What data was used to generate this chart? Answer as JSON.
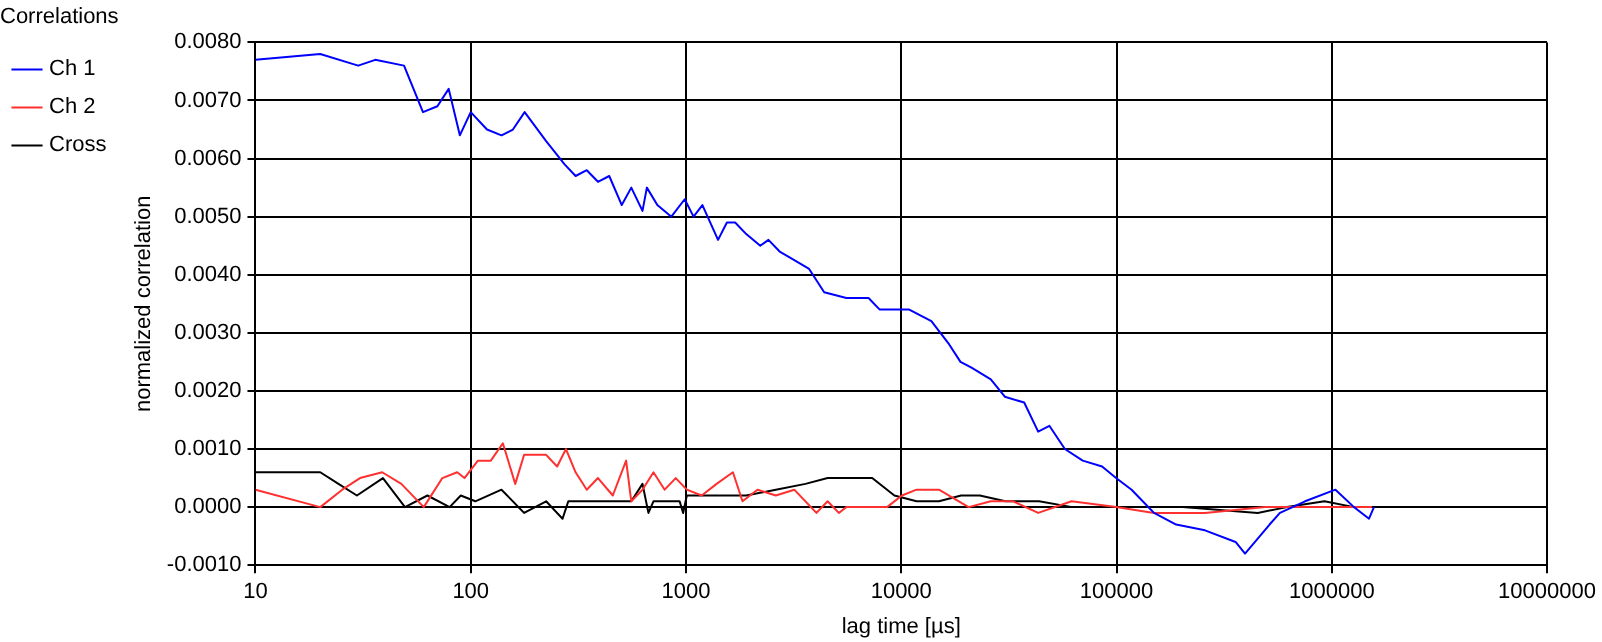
{
  "chart_data": {
    "type": "line",
    "title": "Correlations",
    "xlabel": "lag time [µs]",
    "ylabel": "normalized correlation",
    "log": "x",
    "xlim": [
      10,
      10000000
    ],
    "xticks": [
      10,
      100,
      1000,
      10000,
      100000,
      1000000,
      10000000
    ],
    "ylim": [
      -0.001,
      0.008
    ],
    "yticks": [
      {
        "value": -0.001,
        "label": "-0.0010"
      },
      {
        "value": 0,
        "label": "0.0000"
      },
      {
        "value": 0.001,
        "label": "0.0010"
      },
      {
        "value": 0.002,
        "label": "0.0020"
      },
      {
        "value": 0.003,
        "label": "0.0030"
      },
      {
        "value": 0.004,
        "label": "0.0040"
      },
      {
        "value": 0.005,
        "label": "0.0050"
      },
      {
        "value": 0.006,
        "label": "0.0060"
      },
      {
        "value": 0.007,
        "label": "0.0070"
      },
      {
        "value": 0.008,
        "label": "0.0080"
      }
    ],
    "grid": true,
    "legend": "left",
    "marker": "none",
    "line_style": "solid",
    "series": [
      {
        "name": "Ch 1",
        "color": "#0000ff",
        "x": [
          10,
          20,
          30,
          36,
          49,
          60,
          70,
          79,
          89,
          100,
          119,
          139,
          157,
          178,
          224,
          273,
          307,
          346,
          390,
          440,
          503,
          557,
          628,
          658,
          736,
          855,
          986,
          1084,
          1192,
          1409,
          1549,
          1692,
          1905,
          2213,
          2416,
          2723,
          3733,
          4385,
          5559,
          7047,
          7943,
          10890,
          13800,
          16700,
          18840,
          21200,
          26060,
          30270,
          37240,
          43250,
          48750,
          57540,
          69660,
          85700,
          99540,
          117500,
          149300,
          189200,
          257600,
          357300,
          395400,
          514000,
          574100,
          751600,
          1040000,
          1268000,
          1489000,
          1570000
        ],
        "values": [
          0.0077,
          0.0078,
          0.0076,
          0.0077,
          0.0076,
          0.0068,
          0.0069,
          0.0072,
          0.0064,
          0.0068,
          0.0065,
          0.0064,
          0.0065,
          0.0068,
          0.0063,
          0.0059,
          0.0057,
          0.0058,
          0.0056,
          0.0057,
          0.0052,
          0.0055,
          0.0051,
          0.0055,
          0.0052,
          0.005,
          0.0053,
          0.005,
          0.0052,
          0.0046,
          0.0049,
          0.0049,
          0.0047,
          0.0045,
          0.0046,
          0.0044,
          0.0041,
          0.0037,
          0.0036,
          0.0036,
          0.0034,
          0.0034,
          0.0032,
          0.0028,
          0.0025,
          0.0024,
          0.0022,
          0.0019,
          0.0018,
          0.0013,
          0.0014,
          0.001,
          0.0008,
          0.0007,
          0.0005,
          0.0003,
          -0.0001,
          -0.0003,
          -0.0004,
          -0.0006,
          -0.0008,
          -0.0003,
          -0.0001,
          0.0001,
          0.0003,
          0,
          -0.0002,
          0
        ]
      },
      {
        "name": "Ch 2",
        "color": "#ff3030",
        "x": [
          10,
          20,
          25.3,
          30.6,
          38.8,
          47.6,
          60.5,
          73.8,
          86.5,
          93.5,
          108,
          124,
          141,
          161,
          177,
          199,
          224,
          252,
          277,
          307,
          346,
          390,
          457,
          527,
          557,
          628,
          706,
          796,
          896,
          1009,
          1183,
          1387,
          1652,
          1830,
          2148,
          2614,
          3184,
          4036,
          4550,
          5128,
          5559,
          6252,
          8590,
          10070,
          11780,
          14960,
          20560,
          26060,
          33110,
          43250,
          61800,
          99540,
          149300,
          257600,
          489800,
          729400,
          1074000,
          1535000
        ],
        "values": [
          0.0003,
          0,
          0.0003,
          0.0005,
          0.0006,
          0.0004,
          0,
          0.0005,
          0.0006,
          0.0005,
          0.0008,
          0.0008,
          0.0011,
          0.0004,
          0.0009,
          0.0009,
          0.0009,
          0.0007,
          0.001,
          0.0006,
          0.0003,
          0.0005,
          0.0002,
          0.0008,
          0.0001,
          0.0003,
          0.0006,
          0.0003,
          0.0005,
          0.0003,
          0.0002,
          0.0004,
          0.0006,
          0.0001,
          0.0003,
          0.0002,
          0.0003,
          -0.0001,
          0.0001,
          -0.0001,
          0,
          0,
          0,
          0.0002,
          0.0003,
          0.0003,
          0,
          0.0001,
          0.0001,
          -0.0001,
          0.0001,
          0,
          -0.0001,
          -0.0001,
          0,
          0,
          0,
          0
        ]
      },
      {
        "name": "Cross",
        "color": "#000000",
        "x": [
          10,
          20,
          24.3,
          29.6,
          39.1,
          49.5,
          62.9,
          79.8,
          89.9,
          105,
          139,
          177,
          224,
          267,
          284,
          422,
          557,
          628,
          669,
          706,
          934,
          970,
          1009,
          1387,
          1905,
          2614,
          3589,
          4550,
          5768,
          7328,
          9290,
          11780,
          14960,
          18970,
          23170,
          30480,
          43650,
          62230,
          99540,
          203200,
          452900,
          619400,
          924700,
          1268000
        ],
        "values": [
          0.0006,
          0.0006,
          0.0004,
          0.0002,
          0.0005,
          0,
          0.0002,
          0,
          0.0002,
          0.0001,
          0.0003,
          -0.0001,
          0.0001,
          -0.0002,
          0.0001,
          0.0001,
          0.0001,
          0.0004,
          -0.0001,
          0.0001,
          0.0001,
          -0.0001,
          0.0002,
          0.0002,
          0.0002,
          0.0003,
          0.0004,
          0.0005,
          0.0005,
          0.0005,
          0.0002,
          0.0001,
          0.0001,
          0.0002,
          0.0002,
          0.0001,
          0.0001,
          0,
          0,
          0,
          -0.0001,
          0,
          0.0001,
          0
        ]
      }
    ]
  }
}
